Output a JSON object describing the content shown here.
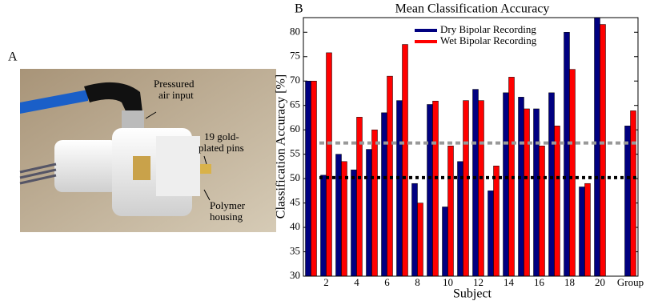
{
  "panel_a": {
    "label": "A",
    "annotations": [
      [
        "Pressured",
        "air input"
      ],
      [
        "19 gold-",
        "plated pins"
      ],
      [
        "Polymer",
        "housing"
      ]
    ]
  },
  "chart_data": {
    "type": "bar",
    "panel_label": "B",
    "title": "Mean Classification Accuracy",
    "x_label": "Subject",
    "y_label": "Classification Accuracy [%]",
    "categories": [
      null,
      "2",
      null,
      "4",
      null,
      "6",
      null,
      "8",
      null,
      "10",
      null,
      "12",
      null,
      "14",
      null,
      "16",
      null,
      "18",
      null,
      "20",
      null,
      "Group"
    ],
    "series": [
      {
        "name": "Dry Bipolar Recording",
        "color": "#000080",
        "values": [
          70,
          50.7,
          55,
          51.8,
          56,
          63.5,
          66,
          49,
          65.2,
          44.2,
          53.5,
          68.3,
          47.5,
          67.6,
          66.7,
          64.3,
          67.6,
          80,
          48.3,
          83,
          null,
          60.8
        ]
      },
      {
        "name": "Wet Bipolar Recording",
        "color": "#ff0000",
        "values": [
          70,
          75.8,
          53.5,
          62.6,
          60,
          71,
          77.5,
          45,
          65.9,
          56.7,
          66,
          66,
          52.6,
          70.8,
          64.3,
          56.7,
          60.8,
          72.4,
          49,
          81.6,
          null,
          63.9
        ]
      }
    ],
    "reference_lines": [
      {
        "value": 57.3,
        "color": "#999999"
      },
      {
        "value": 50.2,
        "color": "#000000"
      }
    ],
    "ylim": [
      30,
      83
    ],
    "yticks": [
      30,
      35,
      40,
      45,
      50,
      55,
      60,
      65,
      70,
      75,
      80
    ],
    "legend": "upper center"
  }
}
